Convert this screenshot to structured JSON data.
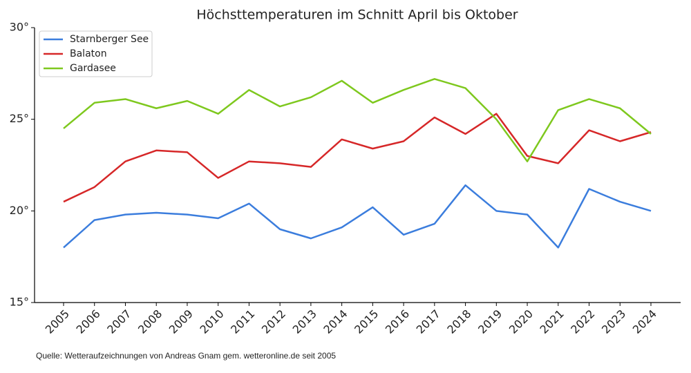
{
  "chart_data": {
    "type": "line",
    "title": "Höchsttemperaturen im Schnitt April bis Oktober",
    "source": "Quelle: Wetteraufzeichnungen von Andreas Gnam gem. wetteronline.de seit 2005",
    "categories": [
      "2005",
      "2006",
      "2007",
      "2008",
      "2009",
      "2010",
      "2011",
      "2012",
      "2013",
      "2014",
      "2015",
      "2016",
      "2017",
      "2018",
      "2019",
      "2020",
      "2021",
      "2022",
      "2023",
      "2024"
    ],
    "series": [
      {
        "name": "Starnberger See",
        "color": "#3b7ddd",
        "values": [
          18.0,
          19.5,
          19.8,
          19.9,
          19.8,
          19.6,
          20.4,
          19.0,
          18.5,
          19.1,
          20.2,
          18.7,
          19.3,
          21.4,
          20.0,
          19.8,
          18.0,
          21.2,
          20.5,
          20.0
        ]
      },
      {
        "name": "Balaton",
        "color": "#d62728",
        "values": [
          20.5,
          21.3,
          22.7,
          23.3,
          23.2,
          21.8,
          22.7,
          22.6,
          22.4,
          23.9,
          23.4,
          23.8,
          25.1,
          24.2,
          25.3,
          23.0,
          22.6,
          24.4,
          23.8,
          24.3
        ]
      },
      {
        "name": "Gardasee",
        "color": "#7ec81e",
        "values": [
          24.5,
          25.9,
          26.1,
          25.6,
          26.0,
          25.3,
          26.6,
          25.7,
          26.2,
          27.1,
          25.9,
          26.6,
          27.2,
          26.7,
          25.0,
          22.7,
          25.5,
          26.1,
          25.6,
          24.2
        ]
      }
    ],
    "ylim": [
      15,
      30
    ],
    "yticks": [
      {
        "value": 15,
        "label": "15°"
      },
      {
        "value": 20,
        "label": "20°"
      },
      {
        "value": 25,
        "label": "25°"
      },
      {
        "value": 30,
        "label": "30°"
      }
    ],
    "legend": "upper left"
  }
}
